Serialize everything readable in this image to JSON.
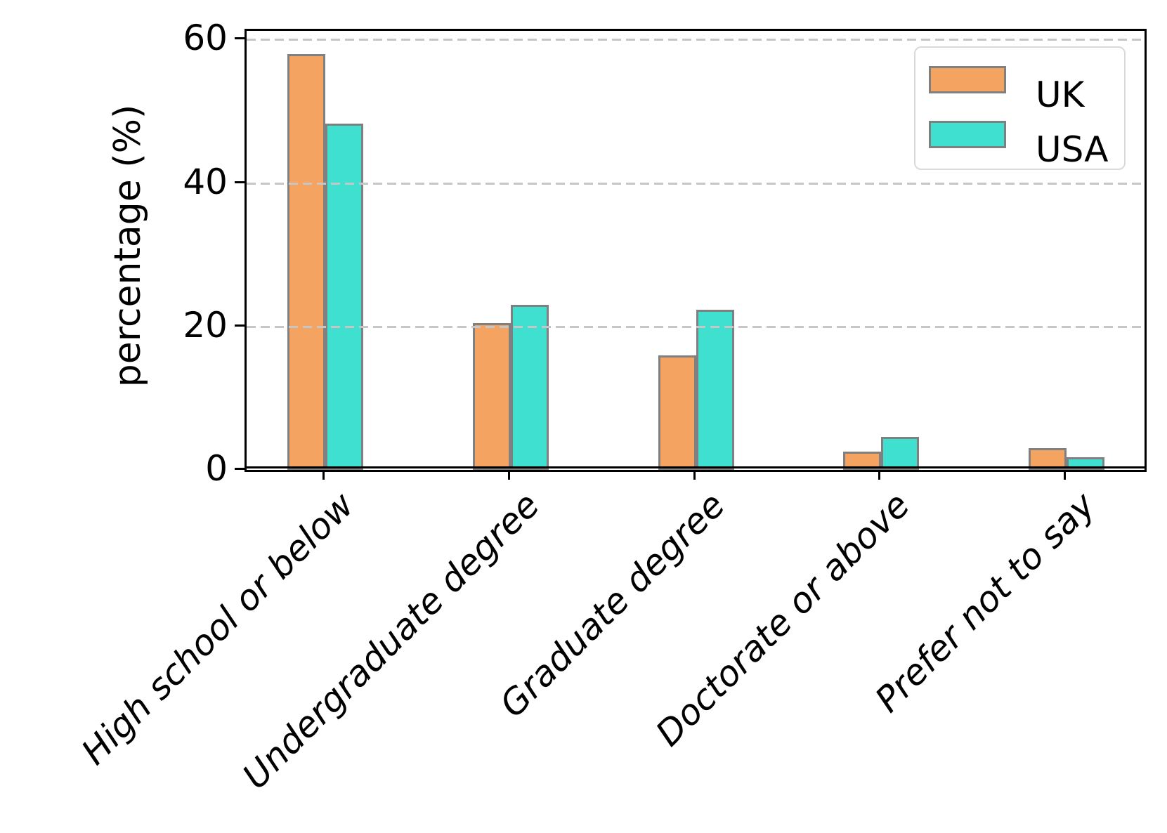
{
  "figure": {
    "background": "#ffffff"
  },
  "y_axis": {
    "label": "percentage (%)"
  },
  "legend": {
    "position": "upper right"
  },
  "chart_data": {
    "type": "bar",
    "title": "",
    "xlabel": "",
    "ylabel": "percentage (%)",
    "categories": [
      "High school or below",
      "Undergraduate degree",
      "Graduate degree",
      "Doctorate or above",
      "Prefer not to say"
    ],
    "series": [
      {
        "name": "UK",
        "color": "#F4A460",
        "values": [
          58.0,
          20.5,
          16.0,
          2.5,
          3.0
        ]
      },
      {
        "name": "USA",
        "color": "#40E0D0",
        "values": [
          48.3,
          23.0,
          22.3,
          4.6,
          1.8
        ]
      }
    ],
    "yticks": [
      0,
      20,
      40,
      60
    ],
    "ylim": [
      0,
      61.2
    ],
    "bar_edge_color": "#808080",
    "grid": {
      "axis": "y",
      "style": "dashed",
      "color": "#c6c6c6",
      "on": true,
      "above_bars": true
    },
    "legend_position": "upper right",
    "xtick_label_style": "italic, rotated 45 degrees"
  }
}
